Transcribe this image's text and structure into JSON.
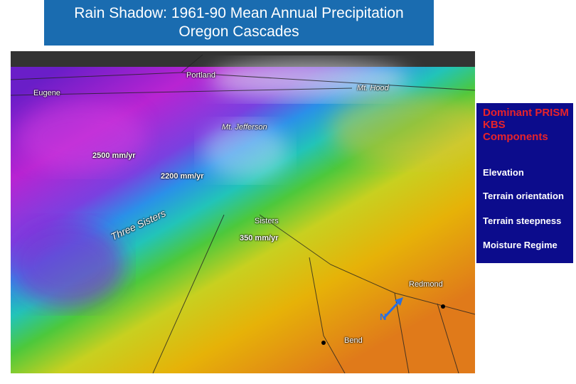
{
  "title": {
    "line1": "Rain Shadow: 1961-90 Mean Annual Precipitation",
    "line2": "Oregon Cascades"
  },
  "map": {
    "labels": [
      "Portland",
      "Mt. Hood",
      "Eugene",
      "Mt. Jefferson",
      "2500 mm/yr",
      "2200 mm/yr",
      "Sisters",
      "350 mm/yr",
      "Three Sisters",
      "Redmond",
      "Bend",
      "N"
    ]
  },
  "panel": {
    "heading": "Dominant PRISM KBS Components",
    "items": [
      "Elevation",
      "Terrain orientation",
      "Terrain steepness",
      "Moisture Regime"
    ]
  }
}
